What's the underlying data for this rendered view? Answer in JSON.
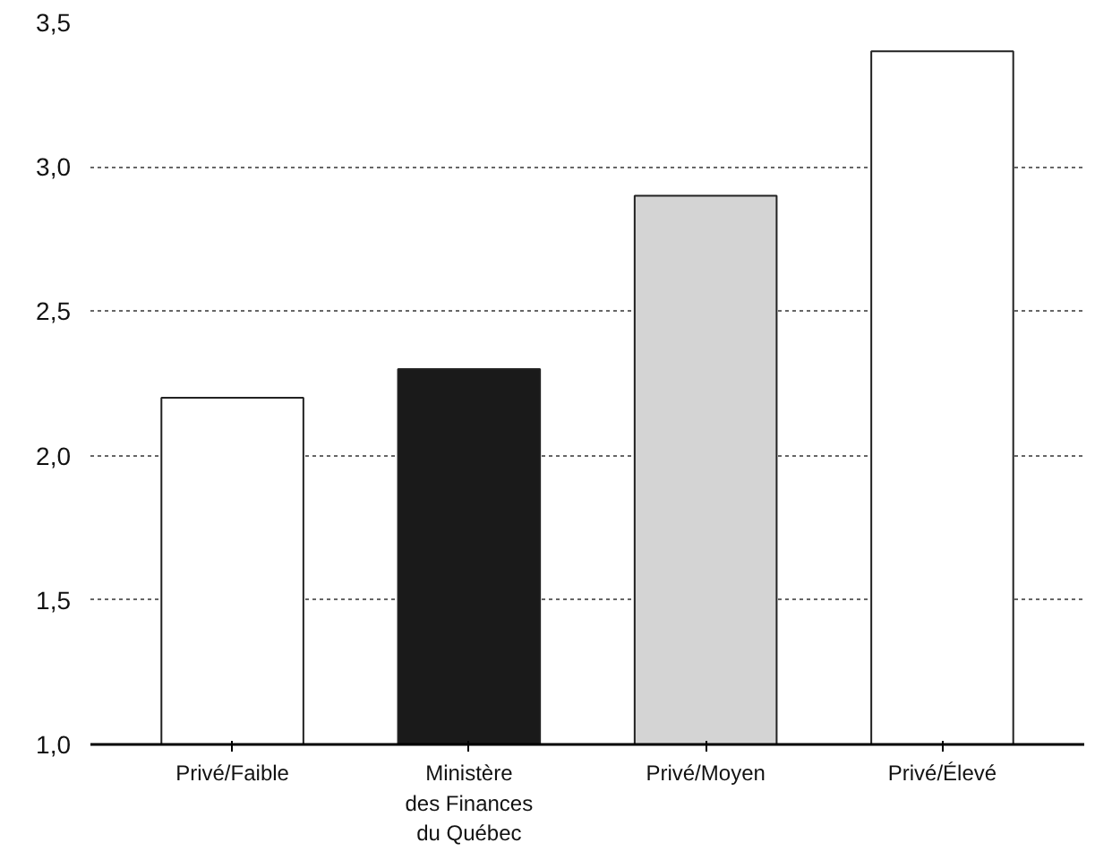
{
  "chart_data": {
    "type": "bar",
    "categories": [
      "Privé/Faible",
      "Ministère des Finances du Québec",
      "Privé/Moyen",
      "Privé/Élevé"
    ],
    "values": [
      2.2,
      2.3,
      2.9,
      3.4
    ],
    "colors": [
      "#ffffff",
      "#1a1a1a",
      "#d4d4d4",
      "#ffffff"
    ],
    "ylim": [
      1.0,
      3.5
    ],
    "yticks": [
      {
        "value": 1.0,
        "label": "1,0"
      },
      {
        "value": 1.5,
        "label": "1,5"
      },
      {
        "value": 2.0,
        "label": "2,0"
      },
      {
        "value": 2.5,
        "label": "2,5"
      },
      {
        "value": 3.0,
        "label": "3,0"
      },
      {
        "value": 3.5,
        "label": "3,5"
      }
    ],
    "grid": "y"
  }
}
